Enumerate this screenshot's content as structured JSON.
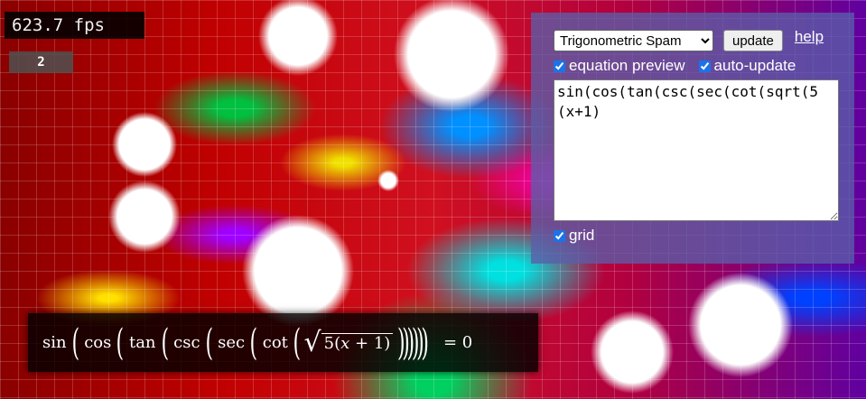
{
  "fps": {
    "label": "623.7 fps"
  },
  "counter": {
    "value": "2"
  },
  "panel": {
    "preset": {
      "selected": "Trigonometric Spam"
    },
    "update_label": "update",
    "help_label": "help",
    "equation_preview": {
      "label": "equation preview",
      "checked": true
    },
    "auto_update": {
      "label": "auto-update",
      "checked": true
    },
    "expression": "sin(cos(tan(csc(sec(cot(sqrt(5(x+1)",
    "grid": {
      "label": "grid",
      "checked": true
    }
  },
  "preview": {
    "fn1": "sin",
    "fn2": "cos",
    "fn3": "tan",
    "fn4": "csc",
    "fn5": "sec",
    "fn6": "cot",
    "radicand_coef": "5",
    "var": "x",
    "plus": "+",
    "one": "1",
    "rhs": "= 0"
  },
  "colors": {
    "panel_bg": "#5a5faa",
    "fps_bg": "#000000",
    "checkbox_accent": "#1a73e8"
  },
  "icons": {
    "select_arrow": "chevron-down-icon",
    "resize_handle": "resize-grip-icon"
  }
}
